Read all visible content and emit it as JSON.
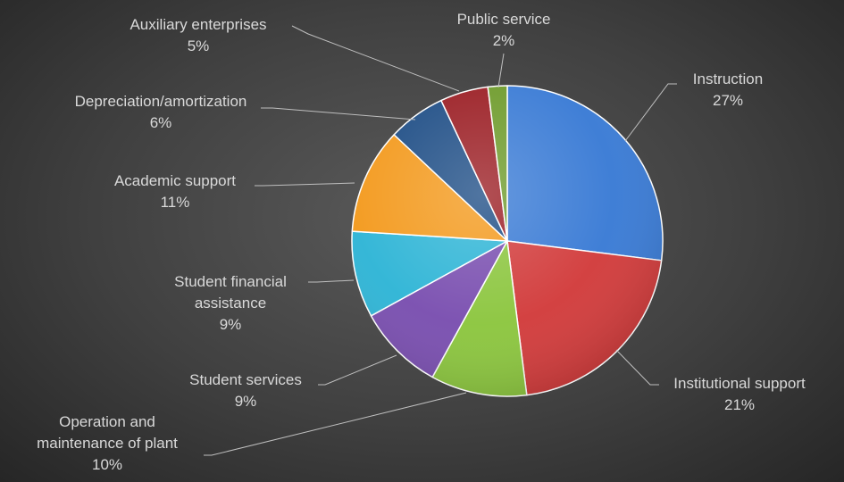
{
  "chart_data": {
    "type": "pie",
    "title": "",
    "series": [
      {
        "values": [
          27,
          21,
          10,
          9,
          9,
          11,
          6,
          5,
          2
        ],
        "labels": [
          "Instruction",
          "Institutional support",
          "Operation and maintenance of plant",
          "Student services",
          "Student financial assistance",
          "Academic support",
          "Depreciation/amortization",
          "Auxiliary enterprises",
          "Public service"
        ],
        "data_labels": [
          "27%",
          "21%",
          "10%",
          "9%",
          "9%",
          "11%",
          "6%",
          "5%",
          "2%"
        ]
      }
    ],
    "start_angle": "12 o'clock",
    "direction": "clockwise",
    "legend": "none",
    "data_label_style": "category name and percentage, outside with leader lines",
    "colors": [
      "#3a7bd5",
      "#d23c3c",
      "#8cc63f",
      "#7a4fb0",
      "#2fb5d6",
      "#f39a1e",
      "#1f4e86",
      "#9b1e24",
      "#6e9b2b"
    ]
  },
  "label_lines": [
    [
      "Instruction"
    ],
    [
      "Institutional support"
    ],
    [
      "Operation and",
      "maintenance  of plant"
    ],
    [
      "Student services"
    ],
    [
      "Student financial",
      "assistance"
    ],
    [
      "Academic support"
    ],
    [
      "Depreciation/amortization"
    ],
    [
      "Auxiliary enterprises"
    ],
    [
      "Public service"
    ]
  ]
}
